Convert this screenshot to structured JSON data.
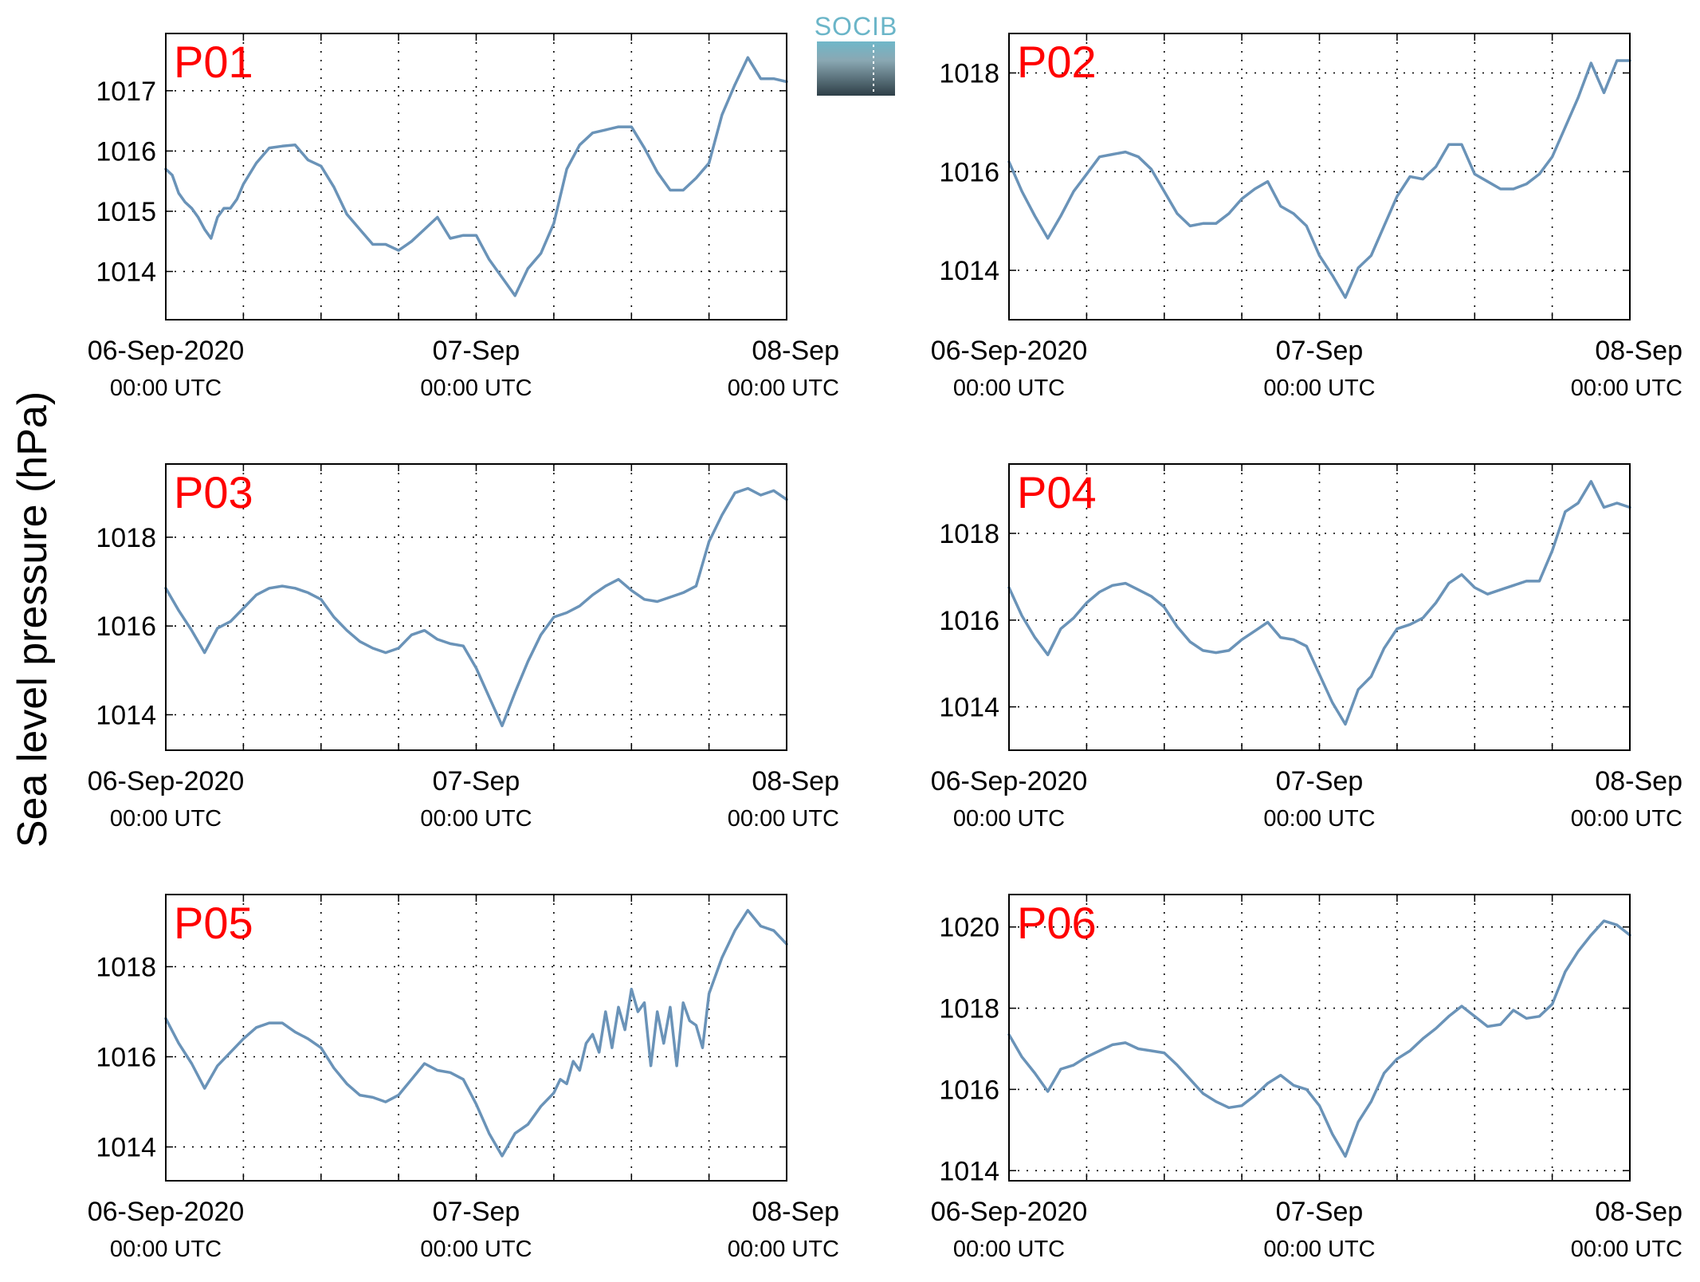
{
  "figure": {
    "ylabel": "Sea level pressure (hPa)",
    "logo_text": "SOCIB",
    "line_color": "#6a93b8",
    "label_color": "#ff0000"
  },
  "chart_data": [
    {
      "type": "line",
      "panel_label": "P01",
      "x_range_hours": [
        0,
        48
      ],
      "ylim": [
        1013.2,
        1017.95
      ],
      "yticks": [
        1014,
        1015,
        1016,
        1017
      ],
      "x_ticks": [
        {
          "hours": 0,
          "date": "06-Sep-2020",
          "time": "00:00 UTC"
        },
        {
          "hours": 24,
          "date": "07-Sep",
          "time": "00:00 UTC"
        },
        {
          "hours": 48,
          "date": "08-Sep",
          "time": "00:00 UTC"
        }
      ],
      "grid": true,
      "series": [
        {
          "x": [
            0,
            0.5,
            1,
            1.5,
            2,
            2.5,
            3,
            3.5,
            4,
            4.5,
            5,
            5.5,
            6,
            7,
            8,
            9,
            10,
            11,
            12,
            13,
            14,
            15,
            16,
            17,
            18,
            19,
            20,
            21,
            22,
            23,
            24,
            25,
            26,
            27,
            28,
            29,
            30,
            31,
            32,
            33,
            34,
            35,
            36,
            37,
            38,
            39,
            40,
            41,
            42,
            43,
            44,
            45,
            46,
            47,
            48
          ],
          "y": [
            1015.7,
            1015.6,
            1015.3,
            1015.15,
            1015.05,
            1014.9,
            1014.7,
            1014.55,
            1014.9,
            1015.05,
            1015.05,
            1015.2,
            1015.45,
            1015.8,
            1016.05,
            1016.08,
            1016.1,
            1015.85,
            1015.75,
            1015.4,
            1014.95,
            1014.7,
            1014.45,
            1014.45,
            1014.35,
            1014.5,
            1014.7,
            1014.9,
            1014.55,
            1014.6,
            1014.6,
            1014.2,
            1013.9,
            1013.6,
            1014.05,
            1014.3,
            1014.8,
            1015.7,
            1016.1,
            1016.3,
            1016.35,
            1016.4,
            1016.4,
            1016.05,
            1015.65,
            1015.35,
            1015.35,
            1015.55,
            1015.8,
            1016.6,
            1017.1,
            1017.55,
            1017.2,
            1017.2,
            1017.15
          ]
        }
      ]
    },
    {
      "type": "line",
      "panel_label": "P02",
      "x_range_hours": [
        0,
        48
      ],
      "ylim": [
        1013.0,
        1018.8
      ],
      "yticks": [
        1014,
        1016,
        1018
      ],
      "x_ticks": [
        {
          "hours": 0,
          "date": "06-Sep-2020",
          "time": "00:00 UTC"
        },
        {
          "hours": 24,
          "date": "07-Sep",
          "time": "00:00 UTC"
        },
        {
          "hours": 48,
          "date": "08-Sep",
          "time": "00:00 UTC"
        }
      ],
      "grid": true,
      "series": [
        {
          "x": [
            0,
            1,
            2,
            3,
            4,
            5,
            6,
            7,
            8,
            9,
            10,
            11,
            12,
            13,
            14,
            15,
            16,
            17,
            18,
            19,
            20,
            21,
            22,
            23,
            24,
            25,
            26,
            27,
            28,
            29,
            30,
            31,
            32,
            33,
            34,
            35,
            36,
            37,
            38,
            39,
            40,
            41,
            42,
            43,
            44,
            45,
            46,
            47,
            48
          ],
          "y": [
            1016.2,
            1015.6,
            1015.1,
            1014.65,
            1015.1,
            1015.6,
            1015.95,
            1016.3,
            1016.35,
            1016.4,
            1016.3,
            1016.05,
            1015.6,
            1015.15,
            1014.9,
            1014.95,
            1014.95,
            1015.15,
            1015.45,
            1015.65,
            1015.8,
            1015.3,
            1015.15,
            1014.9,
            1014.3,
            1013.9,
            1013.45,
            1014.05,
            1014.3,
            1014.9,
            1015.5,
            1015.9,
            1015.85,
            1016.1,
            1016.55,
            1016.55,
            1015.95,
            1015.8,
            1015.65,
            1015.65,
            1015.75,
            1015.95,
            1016.3,
            1016.9,
            1017.5,
            1018.2,
            1017.6,
            1018.25,
            1018.25
          ]
        }
      ]
    },
    {
      "type": "line",
      "panel_label": "P03",
      "x_range_hours": [
        0,
        48
      ],
      "ylim": [
        1013.2,
        1019.65
      ],
      "yticks": [
        1014,
        1016,
        1018
      ],
      "x_ticks": [
        {
          "hours": 0,
          "date": "06-Sep-2020",
          "time": "00:00 UTC"
        },
        {
          "hours": 24,
          "date": "07-Sep",
          "time": "00:00 UTC"
        },
        {
          "hours": 48,
          "date": "08-Sep",
          "time": "00:00 UTC"
        }
      ],
      "grid": true,
      "series": [
        {
          "x": [
            0,
            1,
            2,
            3,
            4,
            5,
            6,
            7,
            8,
            9,
            10,
            11,
            12,
            13,
            14,
            15,
            16,
            17,
            18,
            19,
            20,
            21,
            22,
            23,
            24,
            25,
            26,
            27,
            28,
            29,
            30,
            31,
            32,
            33,
            34,
            35,
            36,
            37,
            38,
            39,
            40,
            41,
            42,
            43,
            44,
            45,
            46,
            47,
            48
          ],
          "y": [
            1016.85,
            1016.35,
            1015.9,
            1015.4,
            1015.95,
            1016.1,
            1016.4,
            1016.7,
            1016.85,
            1016.9,
            1016.85,
            1016.75,
            1016.6,
            1016.2,
            1015.9,
            1015.65,
            1015.5,
            1015.4,
            1015.5,
            1015.8,
            1015.9,
            1015.7,
            1015.6,
            1015.55,
            1015.05,
            1014.4,
            1013.75,
            1014.5,
            1015.2,
            1015.8,
            1016.2,
            1016.3,
            1016.45,
            1016.7,
            1016.9,
            1017.05,
            1016.8,
            1016.6,
            1016.55,
            1016.65,
            1016.75,
            1016.9,
            1017.9,
            1018.5,
            1019.0,
            1019.1,
            1018.95,
            1019.05,
            1018.85
          ]
        }
      ]
    },
    {
      "type": "line",
      "panel_label": "P04",
      "x_range_hours": [
        0,
        48
      ],
      "ylim": [
        1013.0,
        1019.6
      ],
      "yticks": [
        1014,
        1016,
        1018
      ],
      "x_ticks": [
        {
          "hours": 0,
          "date": "06-Sep-2020",
          "time": "00:00 UTC"
        },
        {
          "hours": 24,
          "date": "07-Sep",
          "time": "00:00 UTC"
        },
        {
          "hours": 48,
          "date": "08-Sep",
          "time": "00:00 UTC"
        }
      ],
      "grid": true,
      "series": [
        {
          "x": [
            0,
            1,
            2,
            3,
            4,
            5,
            6,
            7,
            8,
            9,
            10,
            11,
            12,
            13,
            14,
            15,
            16,
            17,
            18,
            19,
            20,
            21,
            22,
            23,
            24,
            25,
            26,
            27,
            28,
            29,
            30,
            31,
            32,
            33,
            34,
            35,
            36,
            37,
            38,
            39,
            40,
            41,
            42,
            43,
            44,
            45,
            46,
            47,
            48
          ],
          "y": [
            1016.75,
            1016.1,
            1015.6,
            1015.2,
            1015.8,
            1016.05,
            1016.4,
            1016.65,
            1016.8,
            1016.85,
            1016.7,
            1016.55,
            1016.3,
            1015.85,
            1015.5,
            1015.3,
            1015.25,
            1015.3,
            1015.55,
            1015.75,
            1015.95,
            1015.6,
            1015.55,
            1015.4,
            1014.75,
            1014.1,
            1013.6,
            1014.4,
            1014.7,
            1015.35,
            1015.8,
            1015.9,
            1016.05,
            1016.4,
            1016.85,
            1017.05,
            1016.75,
            1016.6,
            1016.7,
            1016.8,
            1016.9,
            1016.9,
            1017.6,
            1018.5,
            1018.7,
            1019.2,
            1018.6,
            1018.7,
            1018.6
          ]
        }
      ]
    },
    {
      "type": "line",
      "panel_label": "P05",
      "x_range_hours": [
        0,
        48
      ],
      "ylim": [
        1013.25,
        1019.6
      ],
      "yticks": [
        1014,
        1016,
        1018
      ],
      "x_ticks": [
        {
          "hours": 0,
          "date": "06-Sep-2020",
          "time": "00:00 UTC"
        },
        {
          "hours": 24,
          "date": "07-Sep",
          "time": "00:00 UTC"
        },
        {
          "hours": 48,
          "date": "08-Sep",
          "time": "00:00 UTC"
        }
      ],
      "grid": true,
      "series": [
        {
          "x": [
            0,
            1,
            2,
            3,
            4,
            5,
            6,
            7,
            8,
            9,
            10,
            11,
            12,
            13,
            14,
            15,
            16,
            17,
            18,
            19,
            20,
            21,
            22,
            23,
            24,
            25,
            26,
            27,
            28,
            29,
            30,
            30.5,
            31,
            31.5,
            32,
            32.5,
            33,
            33.5,
            34,
            34.5,
            35,
            35.5,
            36,
            36.5,
            37,
            37.5,
            38,
            38.5,
            39,
            39.5,
            40,
            40.5,
            41,
            41.5,
            42,
            43,
            44,
            45,
            46,
            47,
            48
          ],
          "y": [
            1016.85,
            1016.3,
            1015.85,
            1015.3,
            1015.8,
            1016.1,
            1016.4,
            1016.65,
            1016.75,
            1016.75,
            1016.55,
            1016.4,
            1016.2,
            1015.75,
            1015.4,
            1015.15,
            1015.1,
            1015.0,
            1015.15,
            1015.5,
            1015.85,
            1015.7,
            1015.65,
            1015.5,
            1014.95,
            1014.3,
            1013.8,
            1014.3,
            1014.5,
            1014.9,
            1015.2,
            1015.5,
            1015.4,
            1015.9,
            1015.7,
            1016.3,
            1016.5,
            1016.1,
            1017.0,
            1016.2,
            1017.1,
            1016.6,
            1017.5,
            1017.0,
            1017.2,
            1015.8,
            1017.0,
            1016.3,
            1017.1,
            1015.8,
            1017.2,
            1016.8,
            1016.7,
            1016.2,
            1017.4,
            1018.2,
            1018.8,
            1019.25,
            1018.9,
            1018.8,
            1018.5
          ]
        }
      ]
    },
    {
      "type": "line",
      "panel_label": "P06",
      "x_range_hours": [
        0,
        48
      ],
      "ylim": [
        1013.75,
        1020.8
      ],
      "yticks": [
        1014,
        1016,
        1018,
        1020
      ],
      "x_ticks": [
        {
          "hours": 0,
          "date": "06-Sep-2020",
          "time": "00:00 UTC"
        },
        {
          "hours": 24,
          "date": "07-Sep",
          "time": "00:00 UTC"
        },
        {
          "hours": 48,
          "date": "08-Sep",
          "time": "00:00 UTC"
        }
      ],
      "grid": true,
      "series": [
        {
          "x": [
            0,
            1,
            2,
            3,
            4,
            5,
            6,
            7,
            8,
            9,
            10,
            11,
            12,
            13,
            14,
            15,
            16,
            17,
            18,
            19,
            20,
            21,
            22,
            23,
            24,
            25,
            26,
            27,
            28,
            29,
            30,
            31,
            32,
            33,
            34,
            35,
            36,
            37,
            38,
            39,
            40,
            41,
            42,
            43,
            44,
            45,
            46,
            47,
            48
          ],
          "y": [
            1017.35,
            1016.8,
            1016.4,
            1015.95,
            1016.5,
            1016.6,
            1016.8,
            1016.95,
            1017.1,
            1017.15,
            1017.0,
            1016.95,
            1016.9,
            1016.6,
            1016.25,
            1015.9,
            1015.7,
            1015.55,
            1015.6,
            1015.85,
            1016.15,
            1016.35,
            1016.1,
            1016.0,
            1015.6,
            1014.9,
            1014.35,
            1015.2,
            1015.7,
            1016.4,
            1016.75,
            1016.95,
            1017.25,
            1017.5,
            1017.8,
            1018.05,
            1017.8,
            1017.55,
            1017.6,
            1017.95,
            1017.75,
            1017.8,
            1018.1,
            1018.9,
            1019.4,
            1019.8,
            1020.15,
            1020.05,
            1019.8
          ]
        }
      ]
    }
  ]
}
